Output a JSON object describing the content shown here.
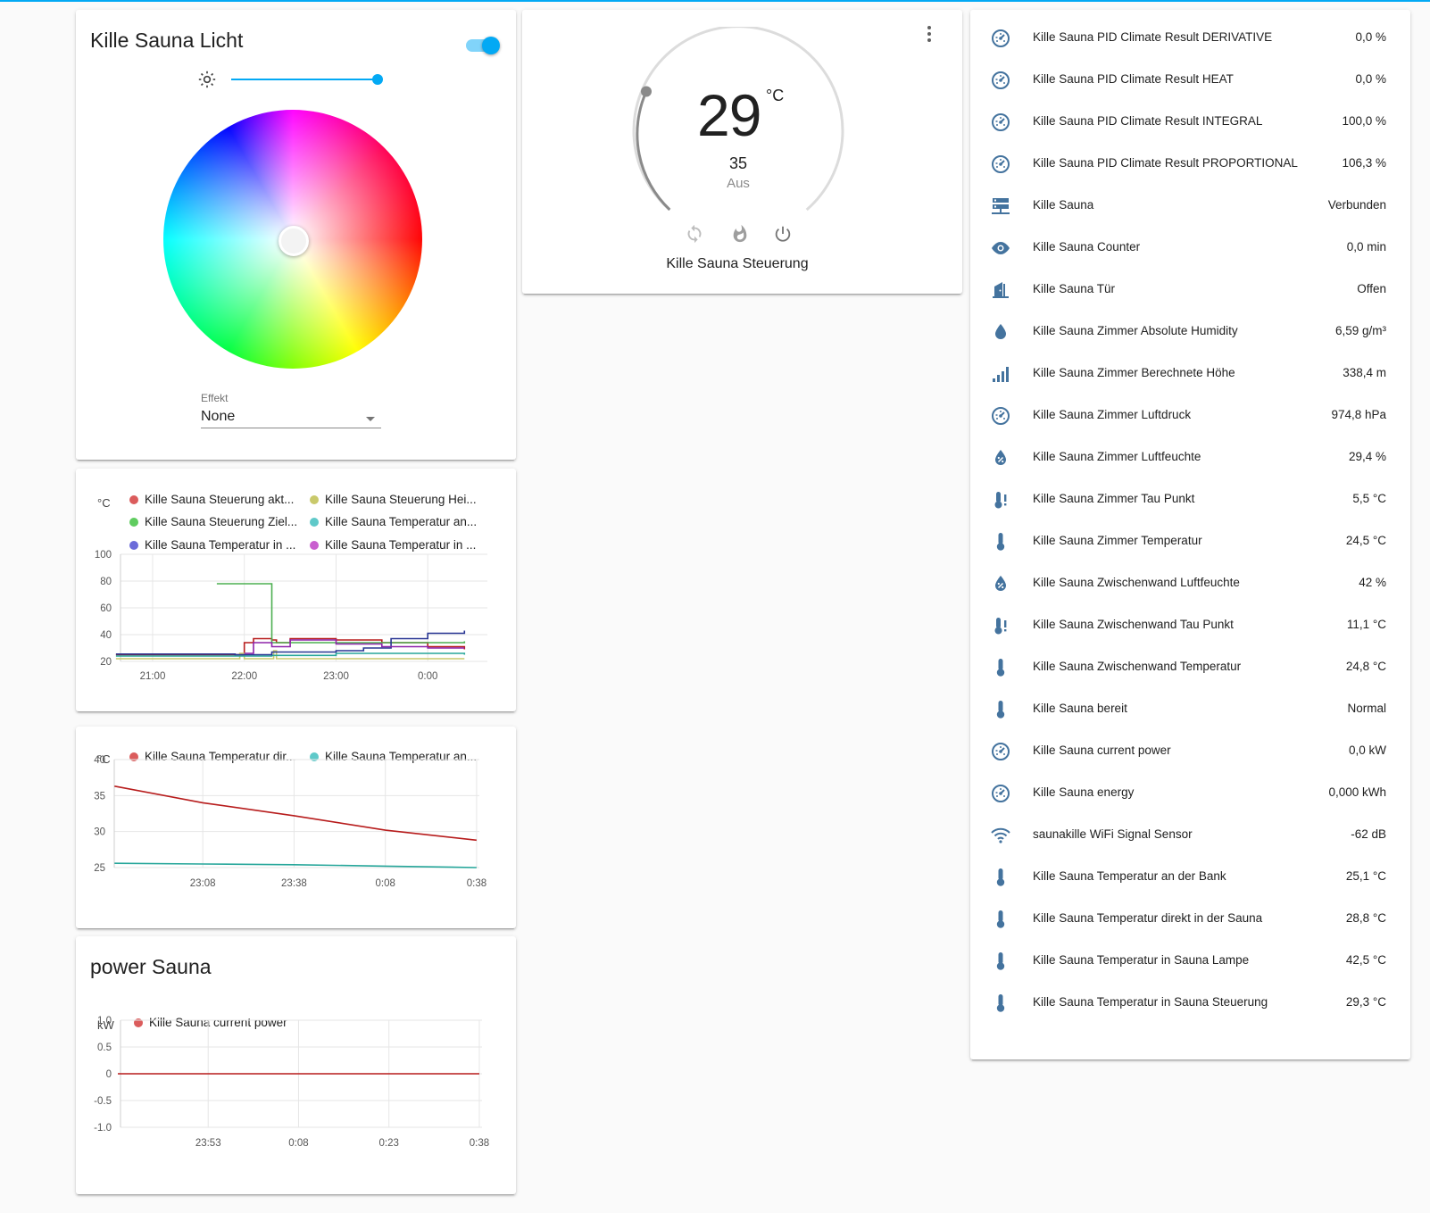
{
  "light_card": {
    "title": "Kille Sauna Licht",
    "toggle_on": true,
    "brightness_level": 1.0,
    "effect_label": "Effekt",
    "effect_value": "None"
  },
  "thermostat": {
    "current_temp": "29",
    "unit": "°C",
    "target_temp": "35",
    "mode": "Aus",
    "name": "Kille Sauna Steuerung",
    "icons": [
      "sync-icon",
      "fire-icon",
      "power-icon"
    ]
  },
  "chart1_legend": {
    "unit": "°C",
    "items": [
      {
        "name": "Kille Sauna Steuerung akt...",
        "color": "#db5c5c"
      },
      {
        "name": "Kille Sauna Steuerung Hei...",
        "color": "#c9c96b"
      },
      {
        "name": "Kille Sauna Steuerung Ziel...",
        "color": "#5fcc5f"
      },
      {
        "name": "Kille Sauna Temperatur an...",
        "color": "#5fc9c9"
      },
      {
        "name": "Kille Sauna Temperatur in ...",
        "color": "#6b6bd9"
      },
      {
        "name": "Kille Sauna Temperatur in ...",
        "color": "#c95fcf"
      }
    ]
  },
  "chart2_legend": {
    "unit": "°C",
    "items": [
      {
        "name": "Kille Sauna Temperatur dir...",
        "color": "#db5c5c"
      },
      {
        "name": "Kille Sauna Temperatur an...",
        "color": "#5fc9c9"
      }
    ]
  },
  "power_card": {
    "title": "power Sauna",
    "unit": "kW",
    "legend": "Kille Sauna current power",
    "legend_color": "#db5c5c"
  },
  "chart_data": [
    {
      "type": "line",
      "ylabel": "°C",
      "ylim": [
        20,
        100
      ],
      "yticks": [
        "100",
        "80",
        "60",
        "40",
        "20"
      ],
      "xticks": [
        "21:00",
        "22:00",
        "23:00",
        "0:00"
      ],
      "grid": true,
      "legend_placement": "top",
      "series": [
        {
          "name": "Kille Sauna Steuerung akt...",
          "color": "#b71c1c",
          "points": [
            [
              20.6,
              25
            ],
            [
              21.9,
              25
            ],
            [
              22.0,
              34
            ],
            [
              22.1,
              37
            ],
            [
              22.3,
              36
            ],
            [
              22.35,
              34
            ],
            [
              22.5,
              37
            ],
            [
              23.0,
              36
            ],
            [
              23.5,
              34
            ],
            [
              24.0,
              31
            ],
            [
              24.4,
              29
            ]
          ]
        },
        {
          "name": "Kille Sauna Steuerung Hei...",
          "color": "#c9c96b",
          "points": [
            [
              20.6,
              22
            ],
            [
              21.9,
              22
            ],
            [
              21.95,
              26
            ],
            [
              22.0,
              22
            ],
            [
              22.3,
              22
            ],
            [
              22.32,
              28
            ],
            [
              22.35,
              22
            ],
            [
              24.4,
              22
            ]
          ]
        },
        {
          "name": "Kille Sauna Steuerung Ziel...",
          "color": "#4caf50",
          "points": [
            [
              21.7,
              78
            ],
            [
              22.05,
              78
            ],
            [
              22.15,
              78
            ],
            [
              22.3,
              77
            ],
            [
              22.3,
              34
            ],
            [
              24.4,
              35
            ]
          ]
        },
        {
          "name": "Kille Sauna Temperatur an...",
          "color": "#26a69a",
          "points": [
            [
              20.6,
              24
            ],
            [
              21.9,
              24
            ],
            [
              22.3,
              24.5
            ],
            [
              23.0,
              26
            ],
            [
              24.4,
              25
            ]
          ]
        },
        {
          "name": "Kille Sauna Temperatur in ...",
          "color": "#283593",
          "points": [
            [
              20.6,
              25.5
            ],
            [
              21.9,
              25
            ],
            [
              22.3,
              27
            ],
            [
              23.0,
              28
            ],
            [
              23.3,
              30
            ],
            [
              23.6,
              37
            ],
            [
              24.0,
              41
            ],
            [
              24.4,
              43
            ]
          ]
        },
        {
          "name": "Kille Sauna Temperatur in ...",
          "color": "#8e24aa",
          "points": [
            [
              22.0,
              26
            ],
            [
              22.1,
              34
            ],
            [
              22.3,
              31
            ],
            [
              22.5,
              36
            ],
            [
              23.0,
              33
            ],
            [
              23.5,
              31
            ],
            [
              24.0,
              30
            ],
            [
              24.4,
              30
            ]
          ]
        }
      ]
    },
    {
      "type": "line",
      "ylabel": "°C",
      "ylim": [
        25,
        40
      ],
      "yticks": [
        "40",
        "35",
        "30",
        "25"
      ],
      "xticks": [
        "23:08",
        "23:38",
        "0:08",
        "0:38"
      ],
      "grid": true,
      "legend_placement": "top",
      "series": [
        {
          "name": "Kille Sauna Temperatur dir...",
          "color": "#b71c1c",
          "points": [
            [
              "22:39",
              36.3
            ],
            [
              "23:08",
              34.0
            ],
            [
              "23:38",
              32.2
            ],
            [
              "0:08",
              30.2
            ],
            [
              "0:38",
              28.8
            ]
          ]
        },
        {
          "name": "Kille Sauna Temperatur an...",
          "color": "#26a69a",
          "points": [
            [
              "22:39",
              25.6
            ],
            [
              "23:08",
              25.5
            ],
            [
              "23:38",
              25.4
            ],
            [
              "0:08",
              25.2
            ],
            [
              "0:38",
              25.0
            ]
          ]
        }
      ]
    },
    {
      "type": "line",
      "ylabel": "kW",
      "ylim": [
        -1.0,
        1.0
      ],
      "yticks": [
        "1.0",
        "0.5",
        "0",
        "-0.5",
        "-1.0"
      ],
      "xticks": [
        "23:53",
        "0:08",
        "0:23",
        "0:38"
      ],
      "grid": true,
      "legend_placement": "top",
      "series": [
        {
          "name": "Kille Sauna current power",
          "color": "#b71c1c",
          "points": [
            [
              "23:38",
              0
            ],
            [
              "0:38",
              0
            ]
          ]
        }
      ]
    }
  ],
  "entities": [
    {
      "icon": "gauge-icon",
      "name": "Kille Sauna PID Climate Result DERIVATIVE",
      "value": "0,0 %"
    },
    {
      "icon": "gauge-icon",
      "name": "Kille Sauna PID Climate Result HEAT",
      "value": "0,0 %"
    },
    {
      "icon": "gauge-icon",
      "name": "Kille Sauna PID Climate Result INTEGRAL",
      "value": "100,0 %"
    },
    {
      "icon": "gauge-icon",
      "name": "Kille Sauna PID Climate Result PROPORTIONAL",
      "value": "106,3 %"
    },
    {
      "icon": "server-network-icon",
      "name": "Kille Sauna",
      "value": "Verbunden"
    },
    {
      "icon": "eye-icon",
      "name": "Kille Sauna Counter",
      "value": "0,0 min"
    },
    {
      "icon": "door-open-icon",
      "name": "Kille Sauna Tür",
      "value": "Offen"
    },
    {
      "icon": "water-icon",
      "name": "Kille Sauna Zimmer Absolute Humidity",
      "value": "6,59 g/m³"
    },
    {
      "icon": "signal-bars-icon",
      "name": "Kille Sauna Zimmer Berechnete Höhe",
      "value": "338,4 m"
    },
    {
      "icon": "gauge-icon",
      "name": "Kille Sauna Zimmer Luftdruck",
      "value": "974,8 hPa"
    },
    {
      "icon": "water-percent-icon",
      "name": "Kille Sauna Zimmer Luftfeuchte",
      "value": "29,4 %"
    },
    {
      "icon": "thermometer-alert-icon",
      "name": "Kille Sauna Zimmer Tau Punkt",
      "value": "5,5 °C"
    },
    {
      "icon": "thermometer-icon",
      "name": "Kille Sauna Zimmer Temperatur",
      "value": "24,5 °C"
    },
    {
      "icon": "water-percent-icon",
      "name": "Kille Sauna Zwischenwand Luftfeuchte",
      "value": "42 %"
    },
    {
      "icon": "thermometer-alert-icon",
      "name": "Kille Sauna Zwischenwand Tau Punkt",
      "value": "11,1 °C"
    },
    {
      "icon": "thermometer-icon",
      "name": "Kille Sauna Zwischenwand Temperatur",
      "value": "24,8 °C"
    },
    {
      "icon": "thermometer-icon",
      "name": "Kille Sauna bereit",
      "value": "Normal"
    },
    {
      "icon": "gauge-icon",
      "name": "Kille Sauna current power",
      "value": "0,0 kW"
    },
    {
      "icon": "gauge-icon",
      "name": "Kille Sauna energy",
      "value": "0,000 kWh"
    },
    {
      "icon": "wifi-icon",
      "name": "saunakille WiFi Signal Sensor",
      "value": "-62 dB"
    },
    {
      "icon": "thermometer-icon",
      "name": "Kille Sauna Temperatur an der Bank",
      "value": "25,1 °C"
    },
    {
      "icon": "thermometer-icon",
      "name": "Kille Sauna Temperatur direkt in der Sauna",
      "value": "28,8 °C"
    },
    {
      "icon": "thermometer-icon",
      "name": "Kille Sauna Temperatur in Sauna Lampe",
      "value": "42,5 °C"
    },
    {
      "icon": "thermometer-icon",
      "name": "Kille Sauna Temperatur in Sauna Steuerung",
      "value": "29,3 °C"
    }
  ],
  "colors": {
    "accent": "#03a9f4",
    "icon": "#44739e"
  }
}
